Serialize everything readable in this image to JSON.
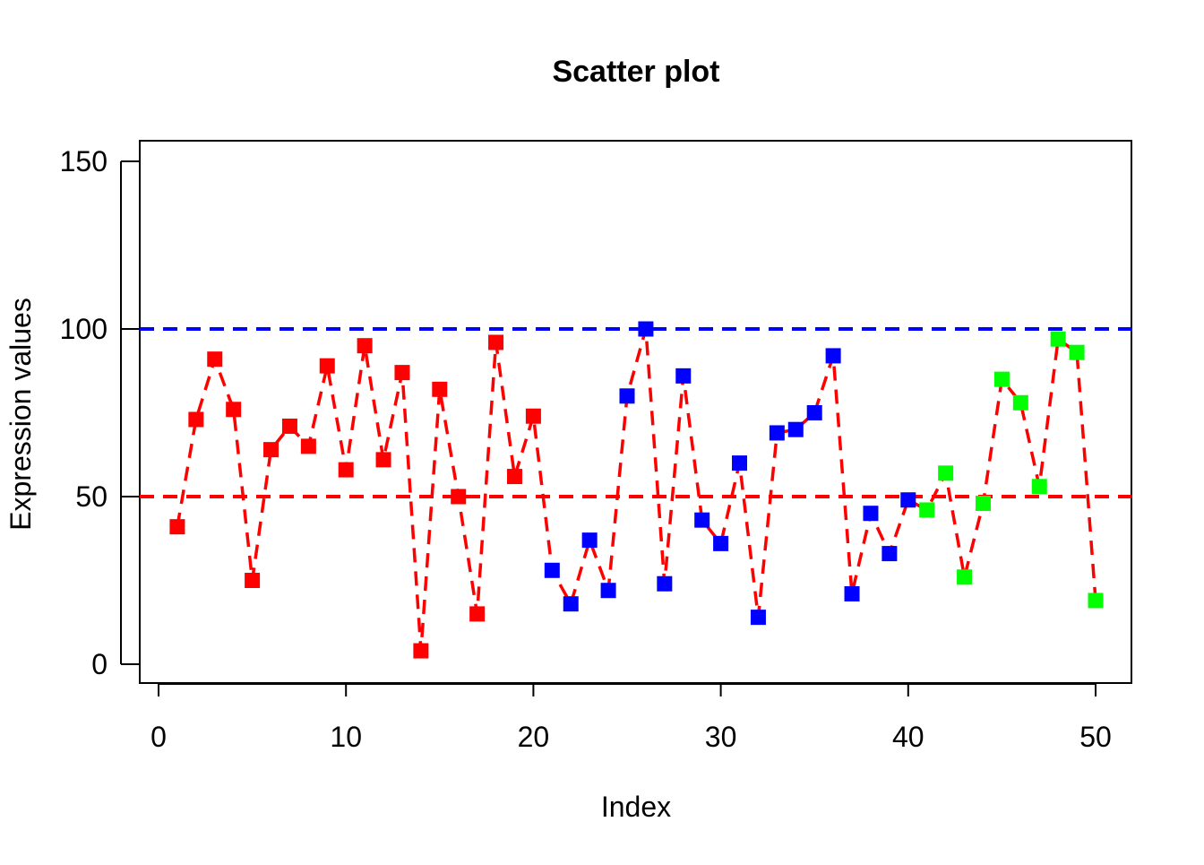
{
  "chart_data": {
    "type": "scatter",
    "title": "Scatter plot",
    "xlabel": "Index",
    "ylabel": "Expression values",
    "xlim": [
      0,
      50
    ],
    "ylim": [
      0,
      150
    ],
    "x_ticks": [
      0,
      10,
      20,
      30,
      40,
      50
    ],
    "y_ticks": [
      0,
      50,
      100,
      150
    ],
    "grid": false,
    "legend": "none",
    "marker": "filled-square",
    "connector": {
      "style": "dashed",
      "color": "#ff0000"
    },
    "reference_lines": [
      {
        "y": 100,
        "color": "#0000ff",
        "style": "dashed"
      },
      {
        "y": 50,
        "color": "#ff0000",
        "style": "dashed"
      }
    ],
    "x": [
      1,
      2,
      3,
      4,
      5,
      6,
      7,
      8,
      9,
      10,
      11,
      12,
      13,
      14,
      15,
      16,
      17,
      18,
      19,
      20,
      21,
      22,
      23,
      24,
      25,
      26,
      27,
      28,
      29,
      30,
      31,
      32,
      33,
      34,
      35,
      36,
      37,
      38,
      39,
      40,
      41,
      42,
      43,
      44,
      45,
      46,
      47,
      48,
      49,
      50
    ],
    "y": [
      41,
      73,
      91,
      76,
      25,
      64,
      71,
      65,
      89,
      58,
      95,
      61,
      87,
      4,
      82,
      50,
      15,
      96,
      56,
      74,
      28,
      18,
      37,
      22,
      80,
      100,
      24,
      86,
      43,
      36,
      60,
      14,
      69,
      70,
      75,
      92,
      21,
      45,
      33,
      49,
      46,
      57,
      26,
      48,
      85,
      78,
      53,
      97,
      93,
      19
    ],
    "point_colors": [
      "#ff0000",
      "#ff0000",
      "#ff0000",
      "#ff0000",
      "#ff0000",
      "#ff0000",
      "#ff0000",
      "#ff0000",
      "#ff0000",
      "#ff0000",
      "#ff0000",
      "#ff0000",
      "#ff0000",
      "#ff0000",
      "#ff0000",
      "#ff0000",
      "#ff0000",
      "#ff0000",
      "#ff0000",
      "#ff0000",
      "#0000ff",
      "#0000ff",
      "#0000ff",
      "#0000ff",
      "#0000ff",
      "#0000ff",
      "#0000ff",
      "#0000ff",
      "#0000ff",
      "#0000ff",
      "#0000ff",
      "#0000ff",
      "#0000ff",
      "#0000ff",
      "#0000ff",
      "#0000ff",
      "#0000ff",
      "#0000ff",
      "#0000ff",
      "#0000ff",
      "#00ff00",
      "#00ff00",
      "#00ff00",
      "#00ff00",
      "#00ff00",
      "#00ff00",
      "#00ff00",
      "#00ff00",
      "#00ff00",
      "#00ff00"
    ]
  }
}
